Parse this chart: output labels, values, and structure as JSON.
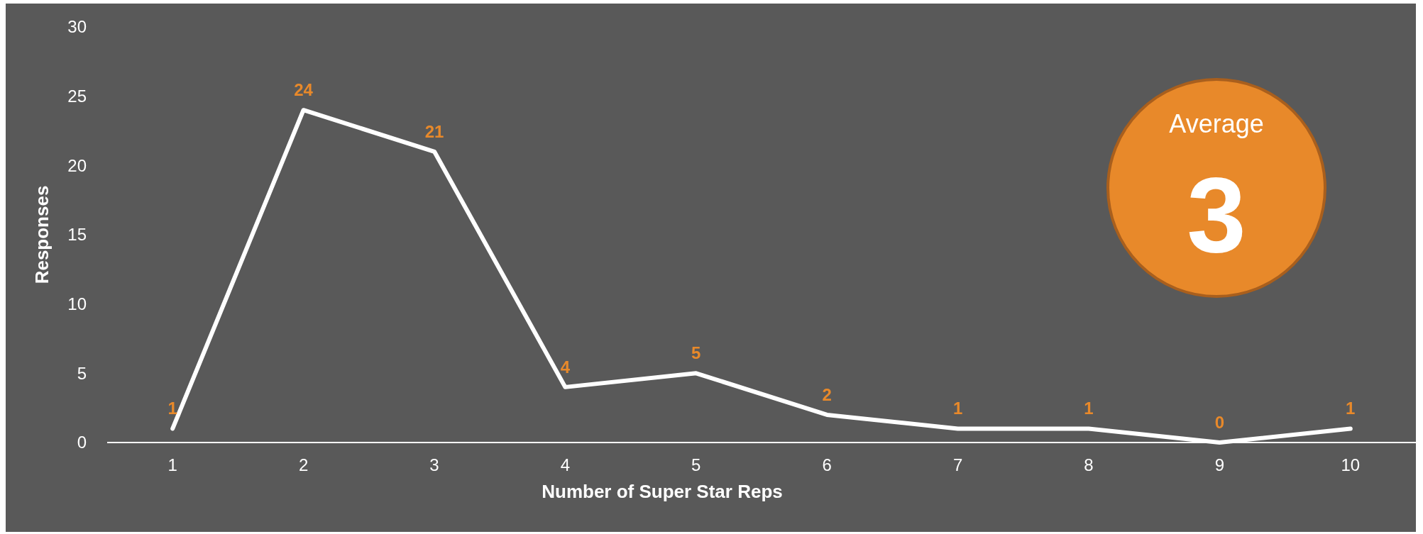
{
  "chart_data": {
    "type": "line",
    "xlabel": "Number of Super Star Reps",
    "ylabel": "Responses",
    "categories": [
      "1",
      "2",
      "3",
      "4",
      "5",
      "6",
      "7",
      "8",
      "9",
      "10"
    ],
    "series": [
      {
        "color": "#ffffff",
        "values": [
          1,
          24,
          21,
          4,
          5,
          2,
          1,
          1,
          0,
          1
        ]
      }
    ],
    "ylim": [
      0,
      30
    ],
    "yticks": [
      0,
      5,
      10,
      15,
      20,
      25,
      30
    ],
    "grid": false,
    "marker": "none",
    "line_style": "solid",
    "data_labels": true,
    "annotations": [
      "Average",
      "3"
    ]
  }
}
